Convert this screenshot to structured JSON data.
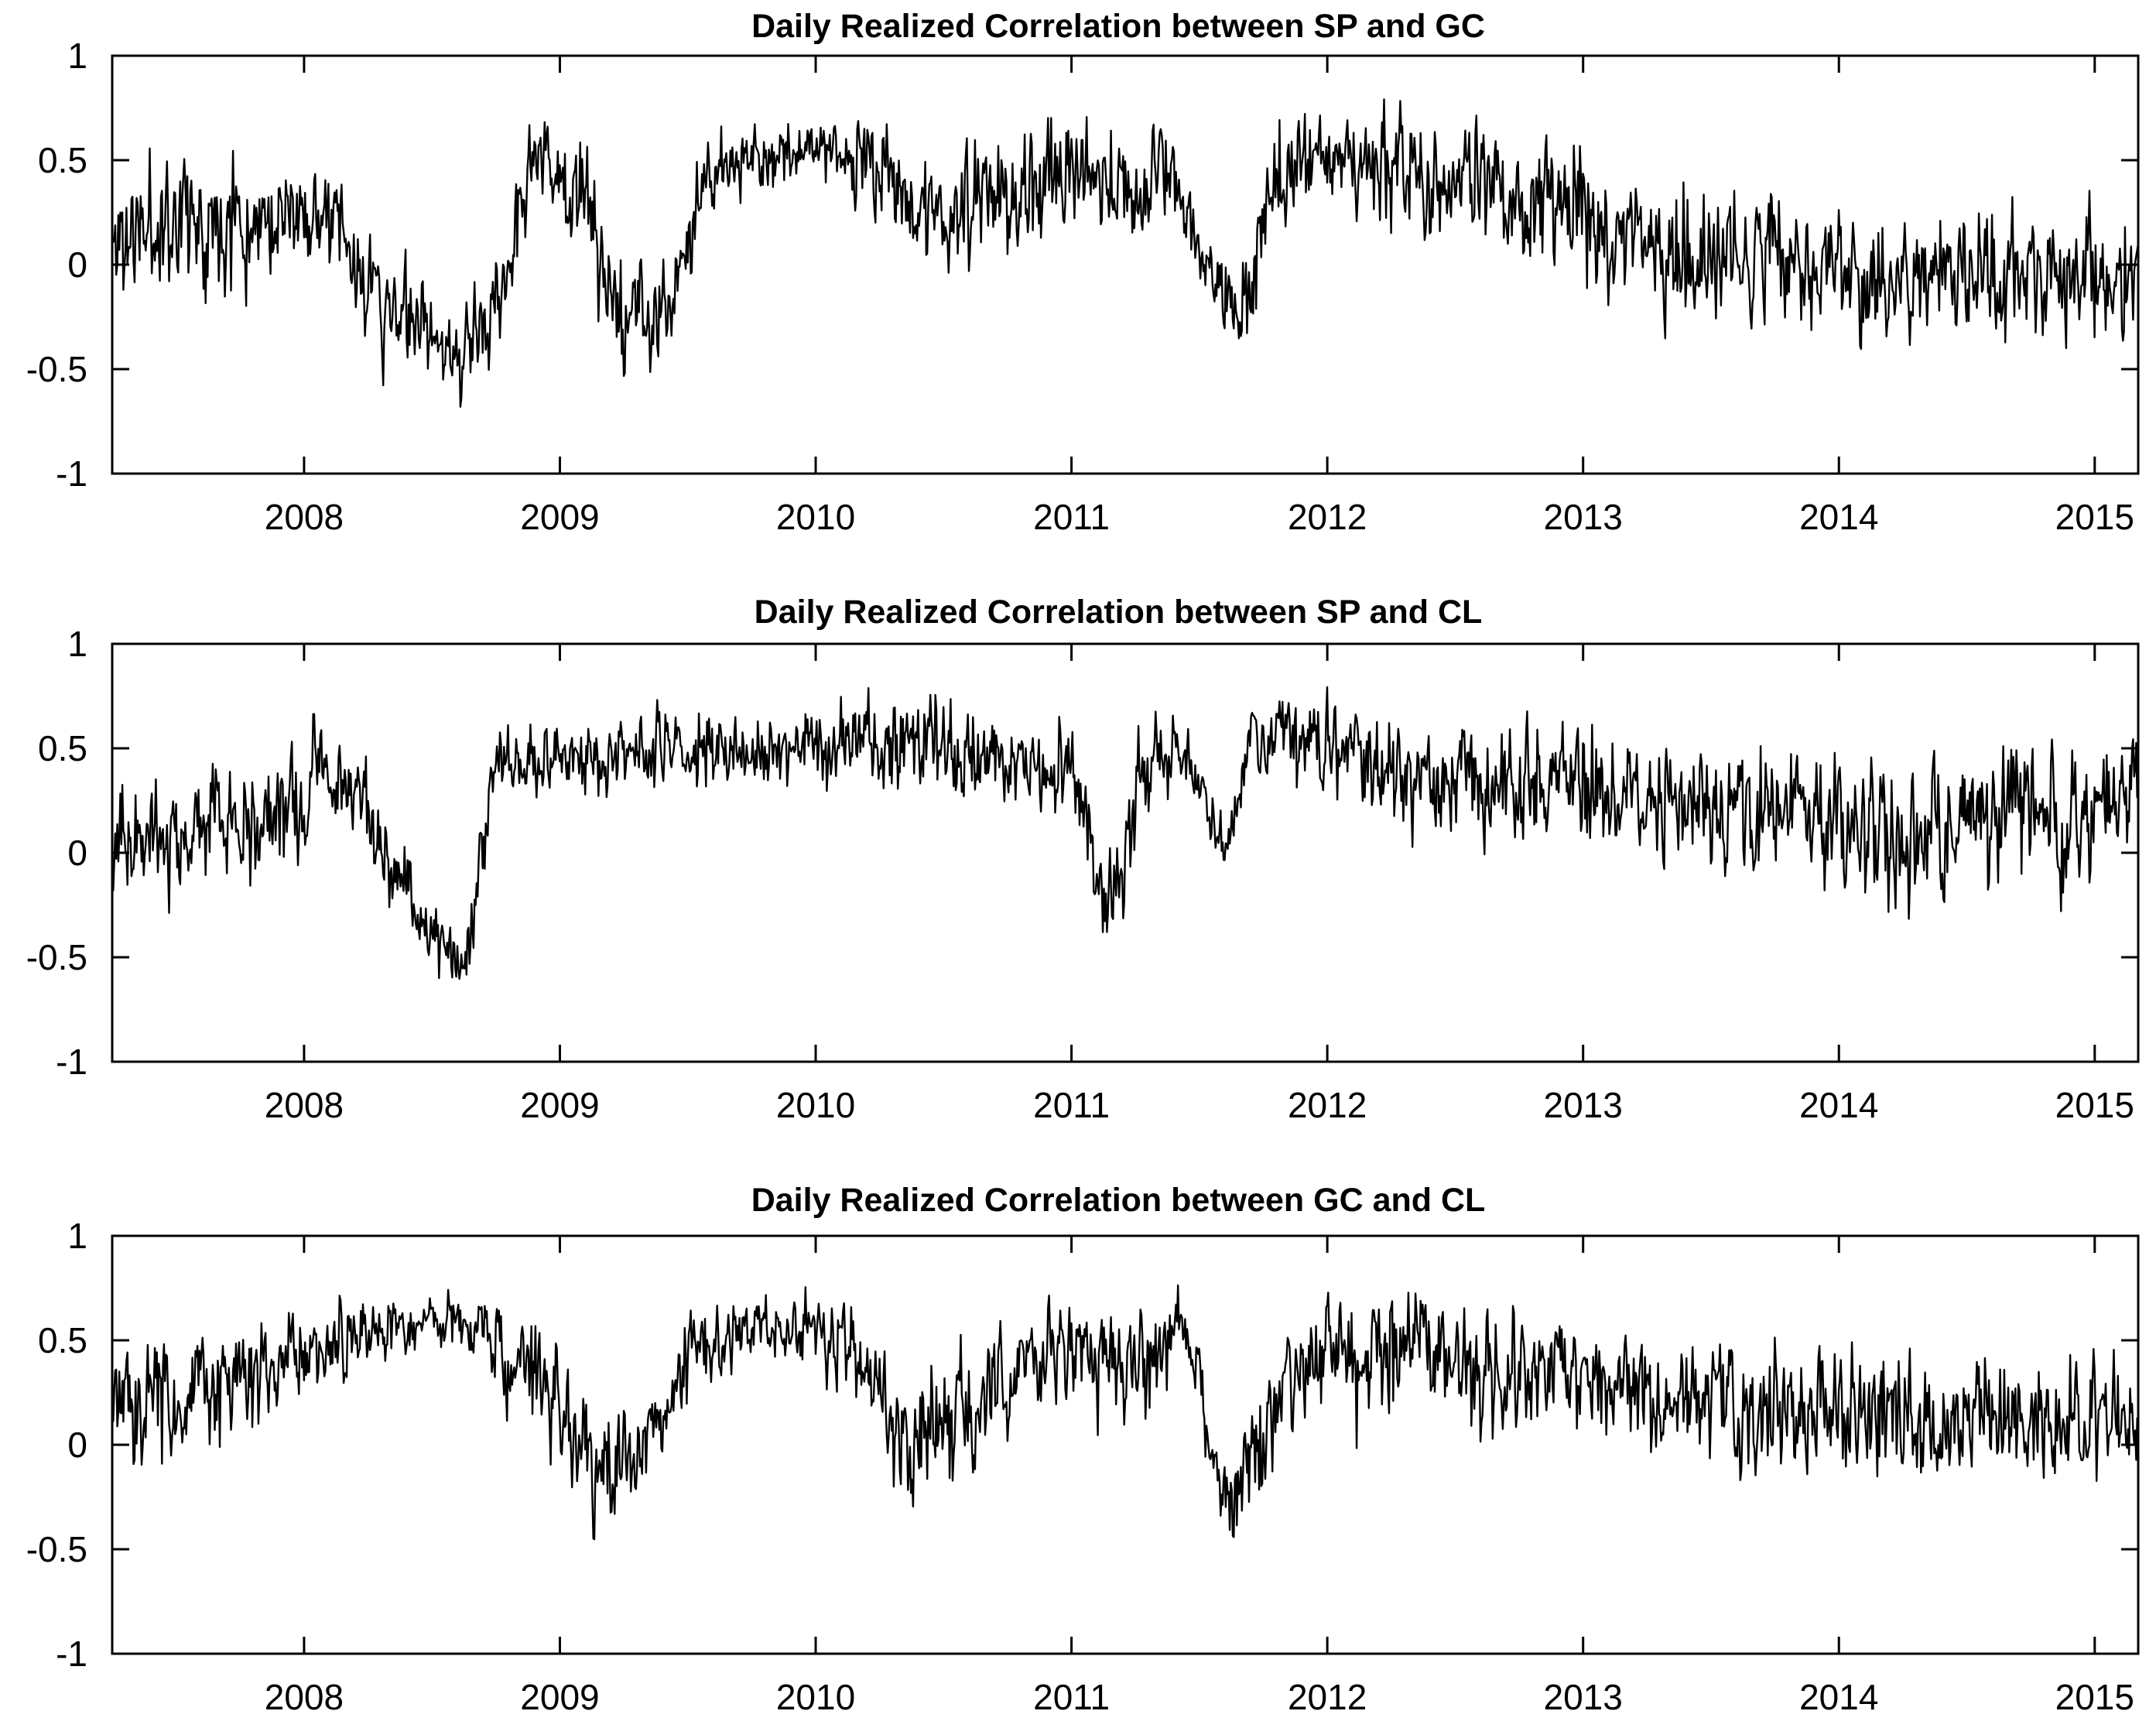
{
  "figure": {
    "line_color": "#000000",
    "background": "#ffffff",
    "grid": false,
    "legend": "none"
  },
  "chart_data": [
    {
      "type": "line",
      "title": "Daily Realized Correlation between SP and GC",
      "xlabel": "",
      "ylabel": "",
      "xlim": [
        2007.25,
        2015.17
      ],
      "ylim": [
        -1,
        1
      ],
      "xticks": [
        2008,
        2009,
        2010,
        2011,
        2012,
        2013,
        2014,
        2015
      ],
      "xtick_labels": [
        "2008",
        "2009",
        "2010",
        "2011",
        "2012",
        "2013",
        "2014",
        "2015"
      ],
      "yticks": [
        1,
        0.5,
        0,
        -0.5,
        -1
      ],
      "ytick_labels": [
        "1",
        "0.5",
        "0",
        "-0.5",
        "-1"
      ],
      "series": [
        {
          "x": [
            2007.25,
            2007.5,
            2007.75,
            2007.92,
            2008.05,
            2008.25,
            2008.5,
            2008.6,
            2008.75,
            2008.9,
            2009.1,
            2009.25,
            2009.4,
            2009.6,
            2009.8,
            2010.0,
            2010.1,
            2010.3,
            2010.5,
            2010.75,
            2011.0,
            2011.2,
            2011.35,
            2011.45,
            2011.55,
            2011.65,
            2011.8,
            2012.0,
            2012.3,
            2012.6,
            2012.9,
            2013.2,
            2013.5,
            2013.8,
            2014.1,
            2014.4,
            2014.7,
            2015.0,
            2015.17
          ],
          "mean": [
            0.1,
            0.25,
            0.25,
            0.2,
            0.3,
            -0.1,
            -0.3,
            -0.45,
            -0.2,
            0.55,
            0.3,
            -0.3,
            -0.2,
            0.45,
            0.5,
            0.6,
            0.55,
            0.35,
            0.25,
            0.35,
            0.45,
            0.3,
            0.5,
            0.2,
            0.0,
            -0.3,
            0.4,
            0.5,
            0.45,
            0.35,
            0.3,
            0.1,
            0.05,
            0.05,
            -0.05,
            -0.05,
            -0.05,
            -0.1,
            -0.1
          ],
          "spread": [
            0.22,
            0.22,
            0.22,
            0.2,
            0.15,
            0.18,
            0.15,
            0.12,
            0.2,
            0.15,
            0.22,
            0.2,
            0.2,
            0.13,
            0.12,
            0.1,
            0.15,
            0.2,
            0.2,
            0.2,
            0.2,
            0.2,
            0.15,
            0.1,
            0.12,
            0.15,
            0.2,
            0.15,
            0.2,
            0.2,
            0.22,
            0.22,
            0.22,
            0.22,
            0.22,
            0.22,
            0.22,
            0.22,
            0.22
          ],
          "seed": 11
        }
      ]
    },
    {
      "type": "line",
      "title": "Daily Realized Correlation between SP and CL",
      "xlabel": "",
      "ylabel": "",
      "xlim": [
        2007.25,
        2015.17
      ],
      "ylim": [
        -1,
        1
      ],
      "xticks": [
        2008,
        2009,
        2010,
        2011,
        2012,
        2013,
        2014,
        2015
      ],
      "xtick_labels": [
        "2008",
        "2009",
        "2010",
        "2011",
        "2012",
        "2013",
        "2014",
        "2015"
      ],
      "yticks": [
        1,
        0.5,
        0,
        -0.5,
        -1
      ],
      "ytick_labels": [
        "1",
        "0.5",
        "0",
        "-0.5",
        "-1"
      ],
      "series": [
        {
          "x": [
            2007.25,
            2007.5,
            2007.75,
            2008.0,
            2008.05,
            2008.2,
            2008.4,
            2008.55,
            2008.65,
            2008.75,
            2009.0,
            2009.5,
            2010.0,
            2010.3,
            2010.5,
            2010.8,
            2011.0,
            2011.1,
            2011.15,
            2011.25,
            2011.4,
            2011.5,
            2011.6,
            2011.7,
            2011.8,
            2012.0,
            2012.3,
            2012.6,
            2013.0,
            2013.3,
            2013.6,
            2014.0,
            2014.3,
            2014.6,
            2014.9,
            2015.17
          ],
          "mean": [
            0.0,
            0.1,
            0.15,
            0.2,
            0.45,
            0.25,
            -0.2,
            -0.45,
            -0.4,
            0.5,
            0.45,
            0.5,
            0.5,
            0.55,
            0.5,
            0.4,
            0.4,
            -0.1,
            -0.4,
            0.3,
            0.5,
            0.3,
            0.0,
            0.55,
            0.6,
            0.5,
            0.4,
            0.35,
            0.3,
            0.25,
            0.2,
            0.15,
            0.1,
            0.15,
            0.2,
            0.35
          ],
          "spread": [
            0.2,
            0.2,
            0.2,
            0.2,
            0.15,
            0.18,
            0.15,
            0.12,
            0.15,
            0.12,
            0.12,
            0.12,
            0.12,
            0.15,
            0.15,
            0.15,
            0.15,
            0.15,
            0.2,
            0.2,
            0.15,
            0.1,
            0.1,
            0.12,
            0.12,
            0.15,
            0.18,
            0.2,
            0.2,
            0.2,
            0.2,
            0.22,
            0.22,
            0.22,
            0.22,
            0.2
          ],
          "seed": 23
        }
      ]
    },
    {
      "type": "line",
      "title": "Daily Realized Correlation between GC and CL",
      "xlabel": "",
      "ylabel": "",
      "xlim": [
        2007.25,
        2015.17
      ],
      "ylim": [
        -1,
        1
      ],
      "xticks": [
        2008,
        2009,
        2010,
        2011,
        2012,
        2013,
        2014,
        2015
      ],
      "xtick_labels": [
        "2008",
        "2009",
        "2010",
        "2011",
        "2012",
        "2013",
        "2014",
        "2015"
      ],
      "yticks": [
        1,
        0.5,
        0,
        -0.5,
        -1
      ],
      "ytick_labels": [
        "1",
        "0.5",
        "0",
        "-0.5",
        "-1"
      ],
      "series": [
        {
          "x": [
            2007.25,
            2007.5,
            2007.75,
            2008.0,
            2008.3,
            2008.6,
            2008.8,
            2009.0,
            2009.15,
            2009.3,
            2009.5,
            2009.8,
            2010.0,
            2010.2,
            2010.35,
            2010.5,
            2010.7,
            2010.9,
            2011.1,
            2011.3,
            2011.45,
            2011.6,
            2011.7,
            2011.85,
            2012.0,
            2012.3,
            2012.6,
            2013.0,
            2013.3,
            2013.6,
            2014.0,
            2014.3,
            2014.6,
            2014.9,
            2015.17
          ],
          "mean": [
            0.25,
            0.2,
            0.3,
            0.45,
            0.55,
            0.6,
            0.45,
            0.3,
            -0.1,
            -0.1,
            0.45,
            0.55,
            0.55,
            0.4,
            0.0,
            0.1,
            0.25,
            0.5,
            0.4,
            0.45,
            0.55,
            -0.3,
            -0.1,
            0.3,
            0.45,
            0.45,
            0.35,
            0.3,
            0.25,
            0.2,
            0.1,
            0.1,
            0.15,
            0.1,
            0.1
          ],
          "spread": [
            0.2,
            0.2,
            0.18,
            0.15,
            0.12,
            0.1,
            0.2,
            0.2,
            0.2,
            0.2,
            0.15,
            0.12,
            0.12,
            0.18,
            0.2,
            0.2,
            0.2,
            0.18,
            0.18,
            0.18,
            0.15,
            0.15,
            0.2,
            0.2,
            0.2,
            0.2,
            0.2,
            0.2,
            0.2,
            0.2,
            0.2,
            0.2,
            0.2,
            0.2,
            0.2
          ],
          "seed": 37
        }
      ]
    }
  ]
}
